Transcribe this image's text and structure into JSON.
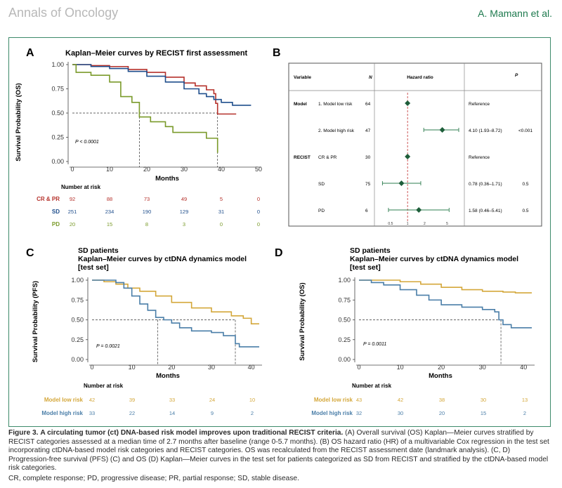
{
  "header": {
    "journal": "Annals of Oncology",
    "author": "A. Mamann et al."
  },
  "panel_a": {
    "letter": "A",
    "title": "Kaplan–Meier curves by RECIST first assessment",
    "ylabel": "Survival Probability (OS)",
    "xlabel": "Months",
    "pvalue": "P < 0.0001",
    "y_ticks": [
      "1.00",
      "0.75",
      "0.50",
      "0.25",
      "0.00"
    ],
    "x_ticks": [
      "0",
      "10",
      "20",
      "30",
      "40",
      "50"
    ],
    "risk_title": "Number at risk",
    "risk_rows": [
      {
        "label": "CR & PR",
        "color": "#b5312b",
        "values": [
          "92",
          "88",
          "73",
          "49",
          "5",
          "0"
        ]
      },
      {
        "label": "SD",
        "color": "#1f4e8c",
        "values": [
          "251",
          "234",
          "190",
          "129",
          "31",
          "0"
        ]
      },
      {
        "label": "PD",
        "color": "#7a9a2a",
        "values": [
          "20",
          "15",
          "8",
          "3",
          "0",
          "0"
        ]
      }
    ]
  },
  "panel_b": {
    "letter": "B",
    "headers": {
      "variable": "Variable",
      "n": "N",
      "hr": "Hazard ratio",
      "p": "P"
    },
    "rows": [
      {
        "group": "Model",
        "level": "1. Model low risk",
        "n": "64",
        "hr_text": "Reference",
        "p": ""
      },
      {
        "group": "",
        "level": "2. Model high risk",
        "n": "47",
        "hr_text": "4.10 (1.93–8.72)",
        "p": "<0.001"
      },
      {
        "group": "RECIST",
        "level": "CR & PR",
        "n": "30",
        "hr_text": "Reference",
        "p": ""
      },
      {
        "group": "",
        "level": "SD",
        "n": "75",
        "hr_text": "0.78 (0.36–1.71)",
        "p": "0.5"
      },
      {
        "group": "",
        "level": "PD",
        "n": "6",
        "hr_text": "1.58 (0.46–5.41)",
        "p": "0.5"
      }
    ],
    "axis_ticks": [
      "0.5",
      "1",
      "2",
      "5"
    ]
  },
  "panel_c": {
    "letter": "C",
    "title_lines": [
      "SD patients",
      "Kaplan–Meier curves by ctDNA dynamics model",
      "[test set]"
    ],
    "ylabel": "Survival Probability (PFS)",
    "xlabel": "Months",
    "pvalue": "P = 0.0021",
    "y_ticks": [
      "1.00",
      "0.75",
      "0.50",
      "0.25",
      "0.00"
    ],
    "x_ticks": [
      "0",
      "10",
      "20",
      "30",
      "40"
    ],
    "risk_title": "Number at risk",
    "risk_rows": [
      {
        "label": "Model low risk",
        "color": "#d4a73a",
        "values": [
          "42",
          "39",
          "33",
          "24",
          "10"
        ]
      },
      {
        "label": "Model high risk",
        "color": "#4a7ea8",
        "values": [
          "33",
          "22",
          "14",
          "9",
          "2"
        ]
      }
    ]
  },
  "panel_d": {
    "letter": "D",
    "title_lines": [
      "SD patients",
      "Kaplan–Meier curves by ctDNA dynamics model",
      "[test set]"
    ],
    "ylabel": "Survival Probability (OS)",
    "xlabel": "Months",
    "pvalue": "P = 0.0011",
    "y_ticks": [
      "1.00",
      "0.75",
      "0.50",
      "0.25",
      "0.00"
    ],
    "x_ticks": [
      "0",
      "10",
      "20",
      "30",
      "40"
    ],
    "risk_title": "Number at risk",
    "risk_rows": [
      {
        "label": "Model low risk",
        "color": "#d4a73a",
        "values": [
          "43",
          "42",
          "38",
          "30",
          "13"
        ]
      },
      {
        "label": "Model high risk",
        "color": "#4a7ea8",
        "values": [
          "32",
          "30",
          "20",
          "15",
          "2"
        ]
      }
    ]
  },
  "caption": {
    "label": "Figure 3.",
    "bold": "A circulating tumor (ct) DNA-based risk model improves upon traditional RECIST criteria.",
    "text": "(A) Overall survival (OS) Kaplan—Meier curves stratified by RECIST categories assessed at a median time of 2.7 months after baseline (range 0-5.7 months). (B) OS hazard ratio (HR) of a multivariable Cox regression in the test set incorporating ctDNA-based model risk categories and RECIST categories. OS was recalculated from the RECIST assessment date (landmark analysis). (C, D) Progression-free survival (PFS) (C) and OS (D) Kaplan—Meier curves in the test set for patients categorized as SD from RECIST and stratified by the ctDNA-based model risk categories.",
    "abbreviations": "CR, complete response; PD, progressive disease; PR, partial response; SD, stable disease."
  },
  "chart_data": [
    {
      "type": "line",
      "panel": "A",
      "title": "Kaplan–Meier curves by RECIST first assessment",
      "xlabel": "Months",
      "ylabel": "Survival Probability (OS)",
      "xlim": [
        0,
        50
      ],
      "ylim": [
        0,
        1
      ],
      "series": [
        {
          "name": "CR & PR",
          "color": "#b5312b",
          "x": [
            0,
            5,
            10,
            15,
            20,
            25,
            30,
            33,
            36,
            38,
            38.5,
            39,
            44
          ],
          "y": [
            1,
            0.99,
            0.98,
            0.95,
            0.92,
            0.87,
            0.81,
            0.78,
            0.74,
            0.7,
            0.6,
            0.49,
            0.49
          ]
        },
        {
          "name": "SD",
          "color": "#1f4e8c",
          "x": [
            0,
            5,
            10,
            15,
            20,
            25,
            30,
            34,
            36,
            38,
            40,
            43,
            48
          ],
          "y": [
            1,
            0.98,
            0.96,
            0.93,
            0.88,
            0.82,
            0.75,
            0.7,
            0.67,
            0.64,
            0.61,
            0.58,
            0.58
          ]
        },
        {
          "name": "PD",
          "color": "#7a9a2a",
          "x": [
            0,
            1,
            5,
            10,
            13,
            16,
            18,
            21,
            25,
            27,
            36,
            39
          ],
          "y": [
            1,
            0.92,
            0.89,
            0.82,
            0.67,
            0.61,
            0.46,
            0.41,
            0.36,
            0.3,
            0.24,
            0.09
          ]
        }
      ],
      "median_lines": [
        {
          "x": 18,
          "y": 0.5
        },
        {
          "x": 39,
          "y": 0.5
        }
      ]
    },
    {
      "type": "forest",
      "panel": "B",
      "scale": "log",
      "xlim": [
        0.3,
        8
      ],
      "reference": 1,
      "points": [
        {
          "label": "1. Model low risk",
          "hr": 1,
          "lo": null,
          "hi": null
        },
        {
          "label": "2. Model high risk",
          "hr": 4.1,
          "lo": 1.93,
          "hi": 8.72
        },
        {
          "label": "CR & PR",
          "hr": 1,
          "lo": null,
          "hi": null
        },
        {
          "label": "SD",
          "hr": 0.78,
          "lo": 0.36,
          "hi": 1.71
        },
        {
          "label": "PD",
          "hr": 1.58,
          "lo": 0.46,
          "hi": 5.41
        }
      ]
    },
    {
      "type": "line",
      "panel": "C",
      "xlabel": "Months",
      "ylabel": "Survival Probability (PFS)",
      "xlim": [
        0,
        42
      ],
      "ylim": [
        0,
        1
      ],
      "series": [
        {
          "name": "Model low risk",
          "color": "#d4a73a",
          "x": [
            0,
            3,
            6,
            9,
            12,
            16,
            20,
            25,
            30,
            35,
            38,
            40,
            42
          ],
          "y": [
            1,
            0.98,
            0.95,
            0.9,
            0.86,
            0.8,
            0.72,
            0.65,
            0.6,
            0.55,
            0.52,
            0.45,
            0.45
          ]
        },
        {
          "name": "Model high risk",
          "color": "#4a7ea8",
          "x": [
            0,
            6,
            8,
            10,
            12,
            14,
            16,
            18,
            20,
            22,
            25,
            30,
            33,
            35,
            36,
            37,
            42
          ],
          "y": [
            1,
            0.97,
            0.9,
            0.8,
            0.7,
            0.62,
            0.53,
            0.5,
            0.46,
            0.4,
            0.36,
            0.34,
            0.3,
            0.3,
            0.2,
            0.16,
            0.16
          ]
        }
      ],
      "median_lines": [
        {
          "x": 16.5,
          "y": 0.5
        },
        {
          "x": 36,
          "y": 0.5
        }
      ]
    },
    {
      "type": "line",
      "panel": "D",
      "xlabel": "Months",
      "ylabel": "Survival Probability (OS)",
      "xlim": [
        0,
        42
      ],
      "ylim": [
        0,
        1
      ],
      "series": [
        {
          "name": "Model low risk",
          "color": "#d4a73a",
          "x": [
            0,
            6,
            10,
            15,
            20,
            25,
            30,
            35,
            38,
            42
          ],
          "y": [
            1,
            1.0,
            0.98,
            0.95,
            0.91,
            0.88,
            0.86,
            0.85,
            0.84,
            0.84
          ]
        },
        {
          "name": "Model high risk",
          "color": "#4a7ea8",
          "x": [
            0,
            3,
            6,
            10,
            14,
            17,
            20,
            25,
            30,
            33,
            34,
            35,
            37,
            42
          ],
          "y": [
            1,
            0.97,
            0.94,
            0.88,
            0.81,
            0.75,
            0.69,
            0.66,
            0.63,
            0.6,
            0.5,
            0.44,
            0.4,
            0.4
          ]
        }
      ],
      "median_lines": [
        {
          "x": 34.5,
          "y": 0.5
        }
      ]
    }
  ]
}
